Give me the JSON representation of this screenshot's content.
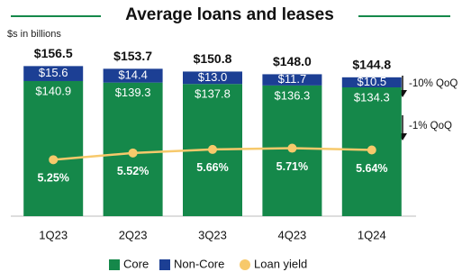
{
  "chart_data": {
    "type": "bar",
    "title": "Average loans and leases",
    "subtitle": "$s in billions",
    "categories": [
      "1Q23",
      "2Q23",
      "3Q23",
      "4Q23",
      "1Q24"
    ],
    "series": [
      {
        "name": "Core",
        "color": "#15884a",
        "values": [
          140.9,
          139.3,
          137.8,
          136.3,
          134.3
        ],
        "value_labels": [
          "$140.9",
          "$139.3",
          "$137.8",
          "$136.3",
          "$134.3"
        ]
      },
      {
        "name": "Non-Core",
        "color": "#1c3f94",
        "values": [
          15.6,
          14.4,
          13.0,
          11.7,
          10.5
        ],
        "value_labels": [
          "$15.6",
          "$14.4",
          "$13.0",
          "$11.7",
          "$10.5"
        ]
      },
      {
        "name": "Loan yield",
        "type": "line",
        "axis": "y2",
        "color": "#f7c96b",
        "values": [
          5.25,
          5.52,
          5.66,
          5.71,
          5.64
        ],
        "value_labels": [
          "5.25%",
          "5.52%",
          "5.66%",
          "5.71%",
          "5.64%"
        ]
      }
    ],
    "totals": [
      156.5,
      153.7,
      150.8,
      148.0,
      144.8
    ],
    "total_labels": [
      "$156.5",
      "$153.7",
      "$150.8",
      "$148.0",
      "$144.8"
    ],
    "annotations": [
      "-10% QoQ",
      "-1% QoQ"
    ],
    "ylim": [
      0,
      170
    ],
    "y2lim": [
      3,
      9.5
    ],
    "stacked": true
  }
}
